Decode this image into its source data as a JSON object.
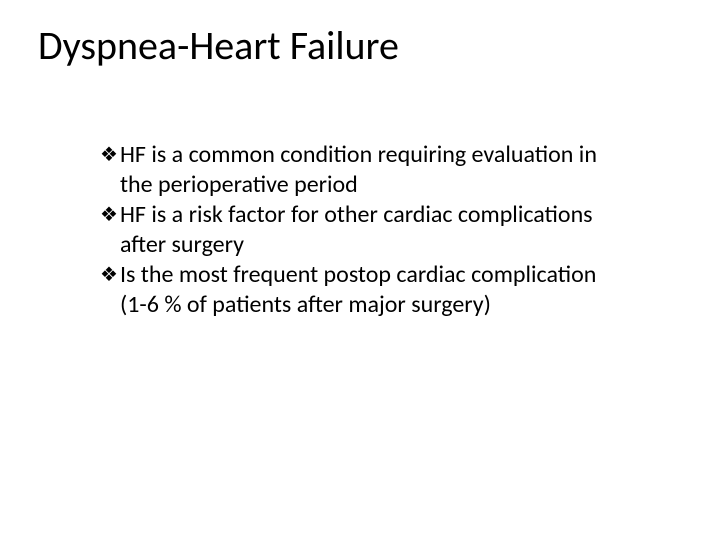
{
  "slide": {
    "title": "Dyspnea-Heart Failure",
    "title_fontsize": 40,
    "title_color": "#000000",
    "background_color": "#ffffff",
    "body_fontsize": 24,
    "body_color": "#000000",
    "bullet_glyph": "❖",
    "bullets": [
      {
        "text": "HF is a common condition requiring evaluation in the perioperative period"
      },
      {
        "text": "HF is a risk factor for other cardiac complications after surgery"
      },
      {
        "text": "Is the most frequent postop cardiac complication (1-6 % of patients after major surgery)"
      }
    ]
  }
}
